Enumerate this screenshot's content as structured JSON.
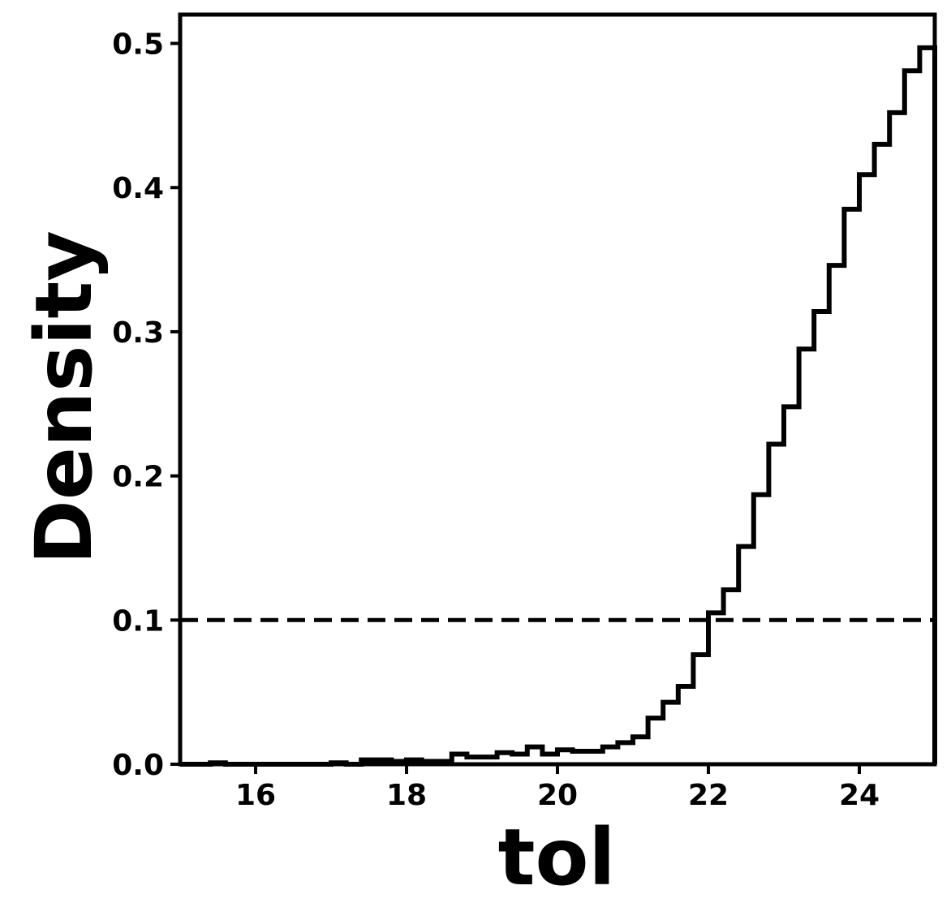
{
  "chart_data": {
    "type": "histogram",
    "title": "",
    "xlabel": "tol",
    "ylabel": "Density",
    "xlim": [
      15,
      25
    ],
    "ylim": [
      0,
      0.52
    ],
    "xticks": [
      16,
      18,
      20,
      22,
      24
    ],
    "yticks": [
      0.0,
      0.1,
      0.2,
      0.3,
      0.4,
      0.5
    ],
    "xtick_labels": [
      "16",
      "18",
      "20",
      "22",
      "24"
    ],
    "ytick_labels": [
      "0.0",
      "0.1",
      "0.2",
      "0.3",
      "0.4",
      "0.5"
    ],
    "grid": false,
    "histtype": "step",
    "color": "#000000",
    "bin_edges": [
      15.0,
      15.2,
      15.4,
      15.6,
      15.8,
      16.0,
      16.2,
      16.4,
      16.6,
      16.8,
      17.0,
      17.2,
      17.4,
      17.6,
      17.8,
      18.0,
      18.2,
      18.4,
      18.6,
      18.8,
      19.0,
      19.2,
      19.4,
      19.6,
      19.8,
      20.0,
      20.2,
      20.4,
      20.6,
      20.8,
      21.0,
      21.2,
      21.4,
      21.6,
      21.8,
      22.0,
      22.2,
      22.4,
      22.6,
      22.8,
      23.0,
      23.2,
      23.4,
      23.6,
      23.8,
      24.0,
      24.2,
      24.4,
      24.6,
      24.8,
      25.0
    ],
    "density": [
      0.0,
      0.0,
      0.001,
      0.0,
      0.0,
      0.0,
      0.0,
      0.0,
      0.0,
      0.0,
      0.001,
      0.0,
      0.003,
      0.003,
      0.002,
      0.003,
      0.002,
      0.002,
      0.007,
      0.005,
      0.005,
      0.008,
      0.007,
      0.012,
      0.007,
      0.01,
      0.009,
      0.009,
      0.012,
      0.015,
      0.019,
      0.032,
      0.043,
      0.054,
      0.076,
      0.105,
      0.121,
      0.151,
      0.187,
      0.222,
      0.248,
      0.288,
      0.314,
      0.346,
      0.385,
      0.409,
      0.43,
      0.452,
      0.481,
      0.497
    ],
    "reference_lines": [
      {
        "orientation": "horizontal",
        "y": 0.1,
        "style": "dashed",
        "color": "#000000"
      }
    ]
  }
}
